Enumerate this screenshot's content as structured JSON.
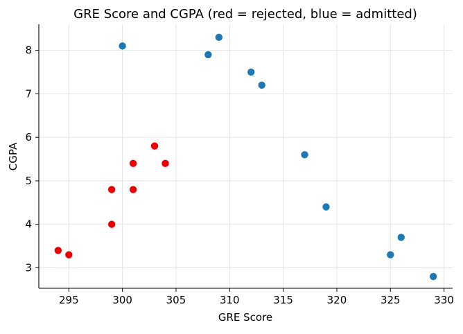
{
  "chart_data": {
    "type": "scatter",
    "title": "GRE Score and CGPA (red = rejected, blue = admitted)",
    "xlabel": "GRE Score",
    "ylabel": "CGPA",
    "xlim": [
      292.2,
      330.8
    ],
    "ylim": [
      2.53,
      8.6
    ],
    "xticks": [
      295,
      300,
      305,
      310,
      315,
      320,
      325,
      330
    ],
    "yticks": [
      3,
      4,
      5,
      6,
      7,
      8
    ],
    "grid": true,
    "colors": {
      "rejected": "#ee0000",
      "admitted": "#1f77b4"
    },
    "series": [
      {
        "key": "rejected",
        "color": "#ee0000",
        "points": [
          {
            "x": 294,
            "y": 3.4
          },
          {
            "x": 295,
            "y": 3.3
          },
          {
            "x": 299,
            "y": 4.0
          },
          {
            "x": 299,
            "y": 4.8
          },
          {
            "x": 301,
            "y": 5.4
          },
          {
            "x": 301,
            "y": 4.8
          },
          {
            "x": 303,
            "y": 5.8
          },
          {
            "x": 304,
            "y": 5.4
          }
        ]
      },
      {
        "key": "admitted",
        "color": "#1f77b4",
        "points": [
          {
            "x": 300,
            "y": 8.1
          },
          {
            "x": 308,
            "y": 7.9
          },
          {
            "x": 309,
            "y": 8.3
          },
          {
            "x": 312,
            "y": 7.5
          },
          {
            "x": 313,
            "y": 7.2
          },
          {
            "x": 317,
            "y": 5.6
          },
          {
            "x": 319,
            "y": 4.4
          },
          {
            "x": 325,
            "y": 3.3
          },
          {
            "x": 326,
            "y": 3.7
          },
          {
            "x": 329,
            "y": 2.8
          }
        ]
      }
    ]
  }
}
